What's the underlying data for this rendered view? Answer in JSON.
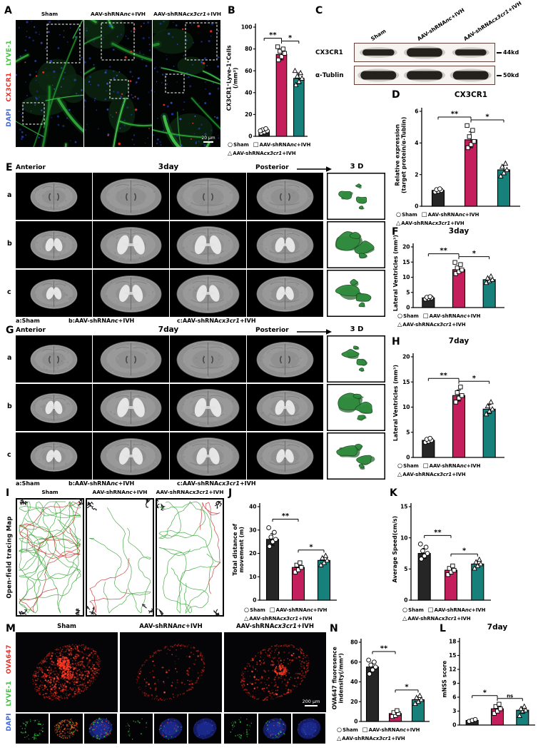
{
  "panels": {
    "A": "A",
    "B": "B",
    "C": "C",
    "D": "D",
    "E": "E",
    "F": "F",
    "G": "G",
    "H": "H",
    "I": "I",
    "J": "J",
    "K": "K",
    "L": "L",
    "M": "M",
    "N": "N"
  },
  "groups": [
    {
      "pre": "Sham",
      "it": "",
      "post": ""
    },
    {
      "pre": "AAV-shRNA",
      "it": "nc",
      "post": "+IVH"
    },
    {
      "pre": "AAV-shRNA",
      "it": "cx3cr1",
      "post": "+IVH"
    }
  ],
  "legend": {
    "markers": [
      "○",
      "□",
      "△"
    ]
  },
  "bar_colors": [
    "#262626",
    "#c41e5c",
    "#17807b"
  ],
  "marker_shapes": [
    "circle",
    "square",
    "triangle"
  ],
  "panelA": {
    "stains": [
      {
        "label": "LYVE-1",
        "color": "#3ec43e"
      },
      {
        "label": "CX3CR1",
        "color": "#e8332a"
      },
      {
        "label": "DAPI",
        "color": "#4169e1"
      }
    ],
    "scale_bar": "20 μm"
  },
  "panelC": {
    "protein1": "CX3CR1",
    "protein2": "α-Tublin",
    "kd1": "44kd",
    "kd2": "50kd"
  },
  "mri": {
    "anterior": "Anterior",
    "posterior": "Posterior",
    "threeD": "3 D",
    "rows": [
      "a",
      "b",
      "c"
    ],
    "caption": [
      {
        "pre": "a:Sham",
        "it": "",
        "post": ""
      },
      {
        "pre": "b:AAV-shRNA",
        "it": "nc",
        "post": "+IVH"
      },
      {
        "pre": "c:AAV-shRNA",
        "it": "cx3cr1",
        "post": "+IVH"
      }
    ]
  },
  "panelE": {
    "day": "3day"
  },
  "panelG": {
    "day": "7day"
  },
  "panelI": {
    "side_label": "Open-field tracing Map"
  },
  "panelM": {
    "stains": [
      {
        "label": "OVA647",
        "color": "#e8332a"
      },
      {
        "label": "LYVE-1",
        "color": "#3ec43e"
      },
      {
        "label": "DAPI",
        "color": "#4169e1"
      }
    ],
    "scale_bar": "200 μm"
  },
  "chart_data": [
    {
      "type": "bar",
      "panel": "B",
      "title": "",
      "ylabel": [
        "CX3CR1⁺Lyve-1⁺Cells",
        "(/mm²)"
      ],
      "ylim": [
        0,
        100
      ],
      "yticks": [
        0,
        20,
        40,
        60,
        80,
        100
      ],
      "categories": [
        "Sham",
        "AAV-shRNAnc+IVH",
        "AAV-shRNAcx3cr1+IVH"
      ],
      "values": [
        5,
        75,
        53
      ],
      "errors": [
        2,
        5,
        5
      ],
      "points": [
        [
          3,
          4,
          5,
          6,
          7,
          5
        ],
        [
          70,
          73,
          76,
          78,
          80,
          82
        ],
        [
          47,
          50,
          53,
          55,
          58,
          60
        ]
      ],
      "sig": [
        {
          "a": 0,
          "b": 1,
          "label": "**"
        },
        {
          "a": 1,
          "b": 2,
          "label": "*"
        }
      ]
    },
    {
      "type": "bar",
      "panel": "D",
      "title": "CX3CR1",
      "ylabel": [
        "Relative expression",
        "(target protein/α-Tublin)"
      ],
      "ylim": [
        0,
        6
      ],
      "yticks": [
        0,
        2,
        4,
        6
      ],
      "categories": [
        "Sham",
        "AAV-shRNAnc+IVH",
        "AAV-shRNAcx3cr1+IVH"
      ],
      "values": [
        1,
        4.2,
        2.3
      ],
      "errors": [
        0.1,
        0.5,
        0.3
      ],
      "points": [
        [
          0.9,
          0.95,
          1,
          1.05,
          1.1
        ],
        [
          3.7,
          3.9,
          4.1,
          4.4,
          4.8,
          5.1
        ],
        [
          1.9,
          2.1,
          2.3,
          2.5,
          2.7
        ]
      ],
      "sig": [
        {
          "a": 0,
          "b": 1,
          "label": "**"
        },
        {
          "a": 1,
          "b": 2,
          "label": "*"
        }
      ]
    },
    {
      "type": "bar",
      "panel": "F",
      "title": "3day",
      "ylabel": [
        "Lateral Ventricles (mm³)"
      ],
      "ylim": [
        0,
        20
      ],
      "yticks": [
        0,
        5,
        10,
        15,
        20
      ],
      "categories": [
        "Sham",
        "AAV-shRNAnc+IVH",
        "AAV-shRNAcx3cr1+IVH"
      ],
      "values": [
        3.2,
        12.5,
        9.2
      ],
      "errors": [
        0.4,
        1.2,
        0.8
      ],
      "points": [
        [
          2.8,
          3,
          3.2,
          3.4,
          3.6
        ],
        [
          11.2,
          11.8,
          12.4,
          13.1,
          14.2,
          14.9
        ],
        [
          8.2,
          8.8,
          9.2,
          9.7,
          10.3
        ]
      ],
      "sig": [
        {
          "a": 0,
          "b": 1,
          "label": "**"
        },
        {
          "a": 1,
          "b": 2,
          "label": "*"
        }
      ]
    },
    {
      "type": "bar",
      "panel": "H",
      "title": "7day",
      "ylabel": [
        "Lateral Ventricles (mm³)"
      ],
      "ylim": [
        0,
        20
      ],
      "yticks": [
        0,
        5,
        10,
        15,
        20
      ],
      "categories": [
        "Sham",
        "AAV-shRNAnc+IVH",
        "AAV-shRNAcx3cr1+IVH"
      ],
      "values": [
        3.4,
        12.3,
        9.6
      ],
      "errors": [
        0.4,
        1.1,
        0.9
      ],
      "points": [
        [
          3,
          3.2,
          3.4,
          3.6,
          3.8
        ],
        [
          11,
          11.8,
          12.3,
          12.9,
          14
        ],
        [
          8.6,
          9.2,
          9.6,
          10.2,
          11
        ]
      ],
      "sig": [
        {
          "a": 0,
          "b": 1,
          "label": "**"
        },
        {
          "a": 1,
          "b": 2,
          "label": "*"
        }
      ]
    },
    {
      "type": "bar",
      "panel": "J",
      "title": "",
      "ylabel": [
        "Total distance of",
        "movement (m)"
      ],
      "ylim": [
        0,
        40
      ],
      "yticks": [
        0,
        10,
        20,
        30,
        40
      ],
      "categories": [
        "Sham",
        "AAV-shRNAnc+IVH",
        "AAV-shRNAcx3cr1+IVH"
      ],
      "values": [
        26,
        14,
        17
      ],
      "errors": [
        2.5,
        1.5,
        1.5
      ],
      "points": [
        [
          23,
          25,
          26,
          27,
          29,
          31
        ],
        [
          12,
          13,
          14,
          15,
          16
        ],
        [
          15,
          16,
          17,
          18,
          19
        ]
      ],
      "sig": [
        {
          "a": 0,
          "b": 1,
          "label": "**"
        },
        {
          "a": 1,
          "b": 2,
          "label": "*"
        }
      ]
    },
    {
      "type": "bar",
      "panel": "K",
      "title": "",
      "ylabel": [
        "Average Speed(cm/s)"
      ],
      "ylim": [
        0,
        15
      ],
      "yticks": [
        0,
        5,
        10,
        15
      ],
      "categories": [
        "Sham",
        "AAV-shRNAnc+IVH",
        "AAV-shRNAcx3cr1+IVH"
      ],
      "values": [
        7.5,
        4.8,
        5.8
      ],
      "errors": [
        0.8,
        0.5,
        0.5
      ],
      "points": [
        [
          6.6,
          7.1,
          7.5,
          7.9,
          8.5,
          9
        ],
        [
          4.1,
          4.5,
          4.8,
          5.1,
          5.5
        ],
        [
          5.1,
          5.5,
          5.8,
          6.1,
          6.5
        ]
      ],
      "sig": [
        {
          "a": 0,
          "b": 1,
          "label": "**"
        },
        {
          "a": 1,
          "b": 2,
          "label": "*"
        }
      ]
    },
    {
      "type": "bar",
      "panel": "N",
      "title": "",
      "ylabel": [
        "OVA647 fluoresence",
        "indensity(/mm²)"
      ],
      "ylim": [
        0,
        80
      ],
      "yticks": [
        0,
        20,
        40,
        60,
        80
      ],
      "categories": [
        "Sham",
        "AAV-shRNAnc+IVH",
        "AAV-shRNAcx3cr1+IVH"
      ],
      "values": [
        55,
        8,
        22
      ],
      "errors": [
        4,
        2,
        3
      ],
      "points": [
        [
          48,
          52,
          55,
          57,
          60,
          62
        ],
        [
          5,
          6,
          8,
          9,
          11
        ],
        [
          18,
          20,
          22,
          24,
          26
        ]
      ],
      "sig": [
        {
          "a": 0,
          "b": 1,
          "label": "**"
        },
        {
          "a": 1,
          "b": 2,
          "label": "*"
        }
      ]
    },
    {
      "type": "bar",
      "panel": "L",
      "title": "7day",
      "ylabel": [
        "mNSS score"
      ],
      "ylim": [
        0,
        18
      ],
      "yticks": [
        0,
        3,
        6,
        9,
        12,
        15,
        18
      ],
      "categories": [
        "Sham",
        "AAV-shRNAnc+IVH",
        "AAV-shRNAcx3cr1+IVH"
      ],
      "values": [
        1,
        3.5,
        3.2
      ],
      "errors": [
        0.3,
        0.8,
        0.7
      ],
      "points": [
        [
          0.8,
          1,
          1.2
        ],
        [
          2.5,
          3,
          3.5,
          4,
          4.5
        ],
        [
          2,
          3,
          3.2,
          3.5,
          4
        ]
      ],
      "sig": [
        {
          "a": 0,
          "b": 1,
          "label": "*"
        },
        {
          "a": 1,
          "b": 2,
          "label": "ns"
        }
      ]
    }
  ]
}
